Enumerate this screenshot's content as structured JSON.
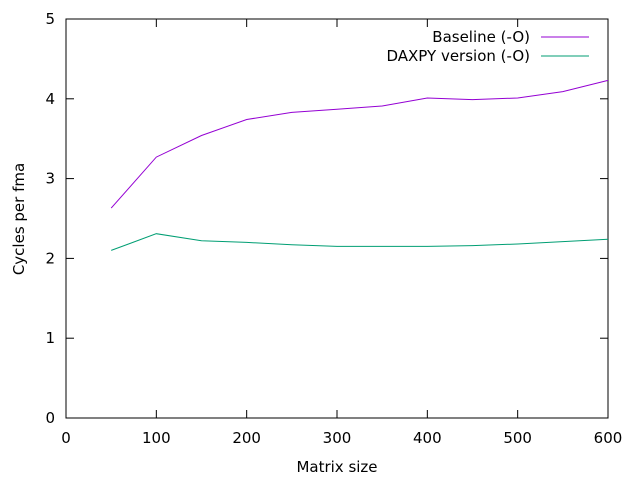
{
  "chart_data": {
    "type": "line",
    "xlabel": "Matrix size",
    "ylabel": "Cycles per fma",
    "xlim": [
      0,
      600
    ],
    "ylim": [
      0,
      5
    ],
    "xticks": [
      0,
      100,
      200,
      300,
      400,
      500,
      600
    ],
    "yticks": [
      0,
      1,
      2,
      3,
      4,
      5
    ],
    "grid": false,
    "legend_position": "top-right",
    "series": [
      {
        "name": "Baseline (-O)",
        "color": "#9400d3",
        "x": [
          50,
          100,
          150,
          200,
          250,
          300,
          350,
          400,
          450,
          500,
          550,
          600
        ],
        "y": [
          2.63,
          3.27,
          3.54,
          3.74,
          3.83,
          3.87,
          3.91,
          4.01,
          3.99,
          4.01,
          4.09,
          4.23
        ]
      },
      {
        "name": "DAXPY version (-O)",
        "color": "#009e73",
        "x": [
          50,
          100,
          150,
          200,
          250,
          300,
          350,
          400,
          450,
          500,
          550,
          600
        ],
        "y": [
          2.1,
          2.31,
          2.22,
          2.2,
          2.17,
          2.15,
          2.15,
          2.15,
          2.16,
          2.18,
          2.21,
          2.24
        ]
      }
    ]
  }
}
